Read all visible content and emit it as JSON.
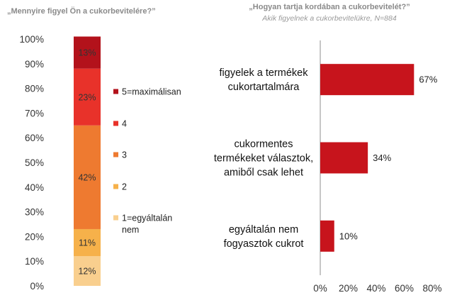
{
  "left_title": "„Mennyire figyel Ön a cukorbevitelére?”",
  "right_title": "„Hogyan  tartja kordában  a cukorbevitelét?”",
  "right_subtitle": "Akik figyelnek a cukorbevitelükre, N=884",
  "chart_data": [
    {
      "type": "bar",
      "stacked": true,
      "title": "„Mennyire figyel Ön a cukorbevitelére?”",
      "categories": [
        ""
      ],
      "y_ticks": [
        "0%",
        "10%",
        "20%",
        "30%",
        "40%",
        "50%",
        "60%",
        "70%",
        "80%",
        "90%",
        "100%"
      ],
      "ylim": [
        0,
        100
      ],
      "legend_position": "right",
      "series": [
        {
          "name": "1=egyáltalán nem",
          "values": [
            12
          ],
          "label": "12%",
          "color": "#f9cf8e"
        },
        {
          "name": "2",
          "values": [
            11
          ],
          "label": "11%",
          "color": "#f6b14a"
        },
        {
          "name": "3",
          "values": [
            42
          ],
          "label": "42%",
          "color": "#ee7a30"
        },
        {
          "name": "4",
          "values": [
            23
          ],
          "label": "23%",
          "color": "#e8322a"
        },
        {
          "name": "5=maximálisan",
          "values": [
            13
          ],
          "label": "13%",
          "color": "#b3121b"
        }
      ]
    },
    {
      "type": "bar",
      "orientation": "horizontal",
      "title": "„Hogyan  tartja kordában  a cukorbevitelét?”",
      "subtitle": "Akik figyelnek a cukorbevitelükre, N=884",
      "categories": [
        [
          "figyelek a termékek",
          "cukortartalmára"
        ],
        [
          "cukormentes",
          "termékeket választok,",
          "amiből csak lehet"
        ],
        [
          "egyáltalán nem",
          "fogyasztok cukrot"
        ]
      ],
      "values": [
        67,
        34,
        10
      ],
      "value_labels": [
        "67%",
        "34%",
        "10%"
      ],
      "x_ticks": [
        "0%",
        "20%",
        "40%",
        "60%",
        "80%"
      ],
      "xlim": [
        0,
        80
      ],
      "color": "#c7141c"
    }
  ]
}
